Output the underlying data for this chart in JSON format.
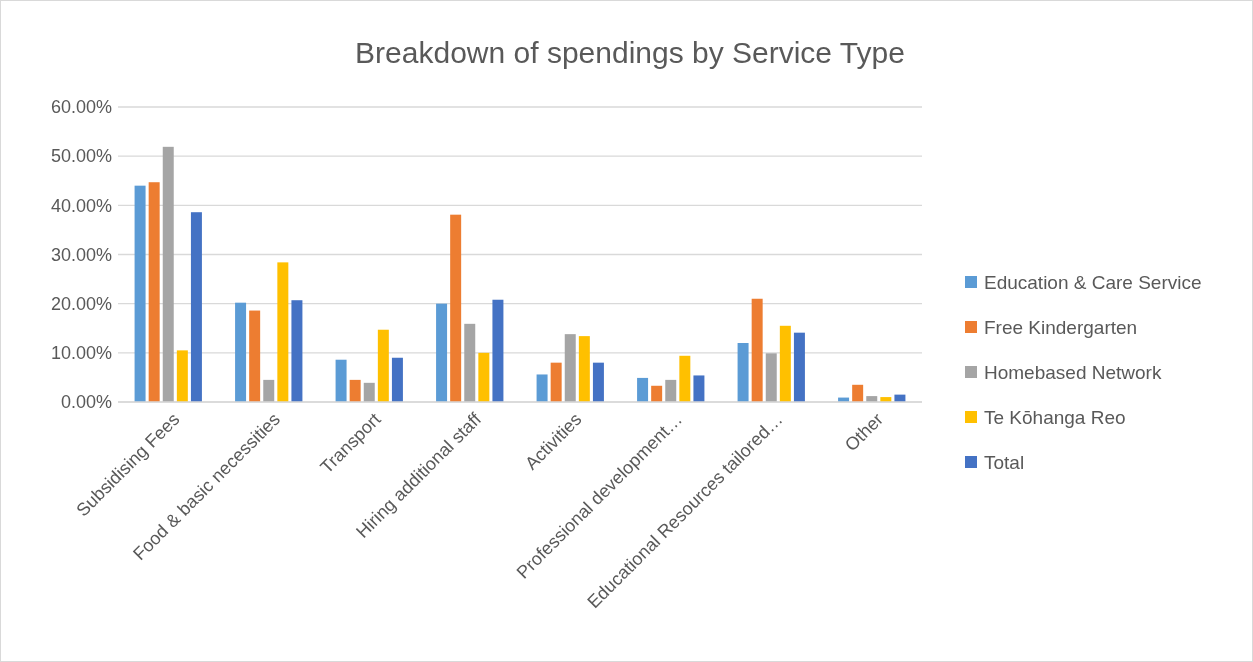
{
  "chart_data": {
    "type": "bar",
    "title": "Breakdown of spendings by Service Type",
    "categories": [
      "Subsidising Fees",
      "Food & basic necessities",
      "Transport",
      "Hiring additional staff",
      "Activities",
      "Professional development…",
      "Educational Resources tailored…",
      "Other"
    ],
    "series": [
      {
        "name": "Education & Care Service",
        "color": "#5b9bd5",
        "values": [
          44.0,
          20.2,
          8.6,
          20.0,
          5.6,
          4.9,
          12.0,
          0.9
        ]
      },
      {
        "name": "Free Kindergarten",
        "color": "#ed7d31",
        "values": [
          44.7,
          18.6,
          4.5,
          38.1,
          8.0,
          3.3,
          21.0,
          3.5
        ]
      },
      {
        "name": "Homebased Network",
        "color": "#a5a5a5",
        "values": [
          51.9,
          4.5,
          3.9,
          15.9,
          13.8,
          4.5,
          9.9,
          1.2
        ]
      },
      {
        "name": "Te Kōhanga Reo",
        "color": "#ffc000",
        "values": [
          10.5,
          28.4,
          14.7,
          10.0,
          13.4,
          9.4,
          15.5,
          1.0
        ]
      },
      {
        "name": "Total",
        "color": "#4472c4",
        "values": [
          38.6,
          20.7,
          9.0,
          20.8,
          8.0,
          5.4,
          14.1,
          1.5
        ]
      }
    ],
    "ylim": [
      0,
      60
    ],
    "yticks": [
      {
        "value": 0,
        "label": "0.00%"
      },
      {
        "value": 10,
        "label": "10.00%"
      },
      {
        "value": 20,
        "label": "20.00%"
      },
      {
        "value": 30,
        "label": "30.00%"
      },
      {
        "value": 40,
        "label": "40.00%"
      },
      {
        "value": 50,
        "label": "50.00%"
      },
      {
        "value": 60,
        "label": "60.00%"
      }
    ],
    "grid": "y",
    "legend": "right"
  }
}
